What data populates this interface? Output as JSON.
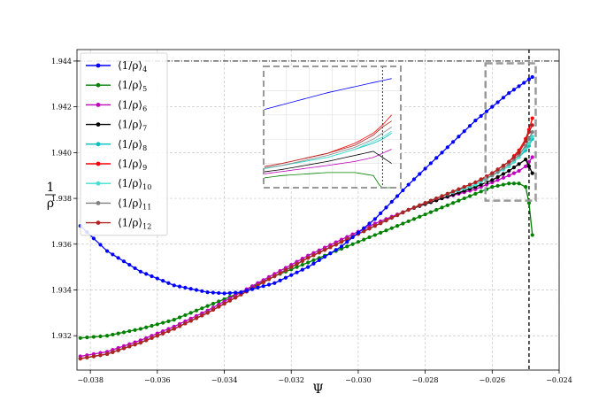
{
  "chart_data": {
    "type": "line",
    "xlabel": "Ψ",
    "ylabel": "1/ρ",
    "xlim": [
      -0.0384,
      -0.024
    ],
    "ylim": [
      1.9305,
      1.9445
    ],
    "xticks": [
      -0.038,
      -0.036,
      -0.034,
      -0.032,
      -0.03,
      -0.028,
      -0.026,
      -0.024
    ],
    "yticks": [
      1.932,
      1.934,
      1.936,
      1.938,
      1.94,
      1.942,
      1.944
    ],
    "xtick_labels": [
      "−0.038",
      "−0.036",
      "−0.034",
      "−0.032",
      "−0.030",
      "−0.028",
      "−0.026",
      "−0.024"
    ],
    "ytick_labels": [
      "1.932",
      "1.934",
      "1.936",
      "1.938",
      "1.940",
      "1.942",
      "1.944"
    ],
    "grid": true,
    "legend_position": "upper-left",
    "reference_lines": {
      "horizontal_y": 1.944,
      "vertical_x": -0.0249
    },
    "series": [
      {
        "name": "⟨1/ρ⟩",
        "subscript": "4",
        "color": "#0000ff",
        "x": [
          -0.0383,
          -0.0375,
          -0.0365,
          -0.0355,
          -0.0345,
          -0.034,
          -0.0335,
          -0.0325,
          -0.0315,
          -0.0305,
          -0.0295,
          -0.0285,
          -0.0275,
          -0.0265,
          -0.026,
          -0.0255,
          -0.0252,
          -0.0249,
          -0.0248
        ],
        "y": [
          1.9368,
          1.9357,
          1.9348,
          1.9342,
          1.9339,
          1.93385,
          1.9339,
          1.9343,
          1.935,
          1.9359,
          1.9371,
          1.9386,
          1.94,
          1.9414,
          1.942,
          1.9426,
          1.9429,
          1.9432,
          1.9433
        ]
      },
      {
        "name": "⟨1/ρ⟩",
        "subscript": "5",
        "color": "#008000",
        "x": [
          -0.0383,
          -0.0375,
          -0.0365,
          -0.0355,
          -0.0345,
          -0.0335,
          -0.0325,
          -0.0315,
          -0.0305,
          -0.0295,
          -0.0285,
          -0.0275,
          -0.0265,
          -0.026,
          -0.0255,
          -0.0252,
          -0.025,
          -0.0249,
          -0.0248
        ],
        "y": [
          1.9319,
          1.932,
          1.9323,
          1.9327,
          1.9333,
          1.9339,
          1.9346,
          1.9352,
          1.9358,
          1.9364,
          1.937,
          1.9376,
          1.9382,
          1.9385,
          1.93865,
          1.93865,
          1.9385,
          1.9378,
          1.9364
        ]
      },
      {
        "name": "⟨1/ρ⟩",
        "subscript": "6",
        "color": "#bf00bf",
        "x": [
          -0.0383,
          -0.0375,
          -0.0365,
          -0.0355,
          -0.0345,
          -0.0335,
          -0.0325,
          -0.0315,
          -0.0305,
          -0.0295,
          -0.0285,
          -0.0275,
          -0.0265,
          -0.026,
          -0.0255,
          -0.0252,
          -0.025,
          -0.0249,
          -0.0248
        ],
        "y": [
          1.9311,
          1.9313,
          1.9318,
          1.9324,
          1.9331,
          1.9339,
          1.9347,
          1.9355,
          1.9362,
          1.9369,
          1.9375,
          1.938,
          1.9384,
          1.9387,
          1.939,
          1.9392,
          1.9394,
          1.9396,
          1.9398
        ]
      },
      {
        "name": "⟨1/ρ⟩",
        "subscript": "7",
        "color": "#000000",
        "x": [
          -0.0383,
          -0.0375,
          -0.0365,
          -0.0355,
          -0.0345,
          -0.0335,
          -0.0325,
          -0.0315,
          -0.0305,
          -0.0295,
          -0.0285,
          -0.0275,
          -0.0265,
          -0.026,
          -0.0255,
          -0.0252,
          -0.025,
          -0.0249,
          -0.0248
        ],
        "y": [
          1.931,
          1.9312,
          1.9317,
          1.9323,
          1.933,
          1.9338,
          1.9346,
          1.9354,
          1.9361,
          1.9368,
          1.9375,
          1.938,
          1.9385,
          1.9388,
          1.9392,
          1.9395,
          1.9397,
          1.9394,
          1.9391
        ]
      },
      {
        "name": "⟨1/ρ⟩",
        "subscript": "8",
        "color": "#00bfbf",
        "x": [
          -0.0383,
          -0.0375,
          -0.0365,
          -0.0355,
          -0.0345,
          -0.0335,
          -0.0325,
          -0.0315,
          -0.0305,
          -0.0295,
          -0.0285,
          -0.0275,
          -0.0265,
          -0.026,
          -0.0255,
          -0.0252,
          -0.025,
          -0.0249,
          -0.0248
        ],
        "y": [
          1.931,
          1.9312,
          1.9317,
          1.9323,
          1.933,
          1.9338,
          1.9346,
          1.9354,
          1.9361,
          1.9368,
          1.9375,
          1.9381,
          1.9386,
          1.939,
          1.9394,
          1.9398,
          1.9401,
          1.9403,
          1.9406
        ]
      },
      {
        "name": "⟨1/ρ⟩",
        "subscript": "9",
        "color": "#ff0000",
        "x": [
          -0.0383,
          -0.0375,
          -0.0365,
          -0.0355,
          -0.0345,
          -0.0335,
          -0.0325,
          -0.0315,
          -0.0305,
          -0.0295,
          -0.0285,
          -0.0275,
          -0.0265,
          -0.026,
          -0.0255,
          -0.0252,
          -0.025,
          -0.0249,
          -0.0248
        ],
        "y": [
          1.931,
          1.9312,
          1.9317,
          1.9323,
          1.933,
          1.9338,
          1.9346,
          1.9354,
          1.9361,
          1.9368,
          1.9375,
          1.9381,
          1.9387,
          1.9391,
          1.9396,
          1.9401,
          1.9406,
          1.941,
          1.9415
        ]
      },
      {
        "name": "⟨1/ρ⟩",
        "subscript": "10",
        "color": "#40e0d0",
        "x": [
          -0.0383,
          -0.0375,
          -0.0365,
          -0.0355,
          -0.0345,
          -0.0335,
          -0.0325,
          -0.0315,
          -0.0305,
          -0.0295,
          -0.0285,
          -0.0275,
          -0.0265,
          -0.026,
          -0.0255,
          -0.0252,
          -0.025,
          -0.0249,
          -0.0248
        ],
        "y": [
          1.931,
          1.9312,
          1.9317,
          1.9323,
          1.933,
          1.9338,
          1.9346,
          1.9354,
          1.9361,
          1.9368,
          1.9375,
          1.9381,
          1.9386,
          1.939,
          1.9394,
          1.9398,
          1.9402,
          1.9404,
          1.9407
        ]
      },
      {
        "name": "⟨1/ρ⟩",
        "subscript": "11",
        "color": "#808080",
        "x": [
          -0.0383,
          -0.0375,
          -0.0365,
          -0.0355,
          -0.0345,
          -0.0335,
          -0.0325,
          -0.0315,
          -0.0305,
          -0.0295,
          -0.0285,
          -0.0275,
          -0.0265,
          -0.026,
          -0.0255,
          -0.0252,
          -0.025,
          -0.0249,
          -0.0248
        ],
        "y": [
          1.931,
          1.9312,
          1.9317,
          1.9323,
          1.933,
          1.9338,
          1.9346,
          1.9354,
          1.9361,
          1.9368,
          1.9375,
          1.9381,
          1.9387,
          1.939,
          1.9395,
          1.9399,
          1.9403,
          1.9406,
          1.9409
        ]
      },
      {
        "name": "⟨1/ρ⟩",
        "subscript": "12",
        "color": "#b22222",
        "x": [
          -0.0383,
          -0.0375,
          -0.0365,
          -0.0355,
          -0.0345,
          -0.0335,
          -0.0325,
          -0.0315,
          -0.0305,
          -0.0295,
          -0.0285,
          -0.0275,
          -0.0265,
          -0.026,
          -0.0255,
          -0.0252,
          -0.025,
          -0.0249,
          -0.0248
        ],
        "y": [
          1.931,
          1.9312,
          1.9317,
          1.9323,
          1.933,
          1.9338,
          1.9346,
          1.9354,
          1.9361,
          1.9368,
          1.9375,
          1.9381,
          1.9387,
          1.9391,
          1.9396,
          1.94,
          1.9405,
          1.9409,
          1.9412
        ]
      }
    ],
    "zoom_region": {
      "xlim": [
        -0.0262,
        -0.0247
      ],
      "ylim": [
        1.9379,
        1.9439
      ]
    }
  }
}
